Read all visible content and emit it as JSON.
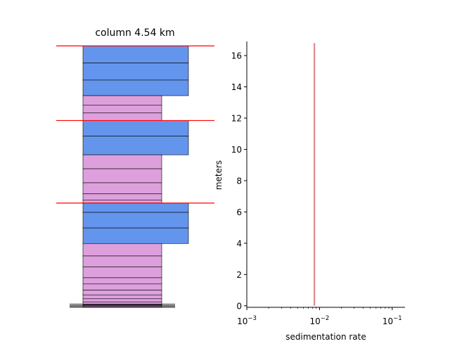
{
  "chart_data": [
    {
      "type": "stratigraphic-column",
      "title": "column 4.54 km",
      "ylim": [
        0,
        16.9
      ],
      "colors": {
        "wide": "#6495ED",
        "narrow": "#DDA0DD",
        "boundary": "#FF0000"
      },
      "boundaries": [
        16.8,
        12.0,
        6.7
      ],
      "beds": [
        {
          "bottom": 15.7,
          "top": 16.8,
          "kind": "wide"
        },
        {
          "bottom": 14.6,
          "top": 15.7,
          "kind": "wide"
        },
        {
          "bottom": 13.6,
          "top": 14.6,
          "kind": "wide"
        },
        {
          "bottom": 13.0,
          "top": 13.6,
          "kind": "narrow"
        },
        {
          "bottom": 12.5,
          "top": 13.0,
          "kind": "narrow"
        },
        {
          "bottom": 12.0,
          "top": 12.5,
          "kind": "narrow"
        },
        {
          "bottom": 11.0,
          "top": 12.0,
          "kind": "wide"
        },
        {
          "bottom": 9.8,
          "top": 11.0,
          "kind": "wide"
        },
        {
          "bottom": 8.9,
          "top": 9.8,
          "kind": "narrow"
        },
        {
          "bottom": 8.0,
          "top": 8.9,
          "kind": "narrow"
        },
        {
          "bottom": 7.3,
          "top": 8.0,
          "kind": "narrow"
        },
        {
          "bottom": 6.9,
          "top": 7.3,
          "kind": "narrow"
        },
        {
          "bottom": 6.7,
          "top": 6.9,
          "kind": "narrow"
        },
        {
          "bottom": 6.1,
          "top": 6.7,
          "kind": "wide"
        },
        {
          "bottom": 5.1,
          "top": 6.1,
          "kind": "wide"
        },
        {
          "bottom": 4.1,
          "top": 5.1,
          "kind": "wide"
        },
        {
          "bottom": 3.3,
          "top": 4.1,
          "kind": "narrow"
        },
        {
          "bottom": 2.6,
          "top": 3.3,
          "kind": "narrow"
        },
        {
          "bottom": 1.9,
          "top": 2.6,
          "kind": "narrow"
        },
        {
          "bottom": 1.5,
          "top": 1.9,
          "kind": "narrow"
        },
        {
          "bottom": 1.1,
          "top": 1.5,
          "kind": "narrow"
        },
        {
          "bottom": 0.8,
          "top": 1.1,
          "kind": "narrow"
        },
        {
          "bottom": 0.55,
          "top": 0.8,
          "kind": "narrow"
        },
        {
          "bottom": 0.35,
          "top": 0.55,
          "kind": "narrow"
        },
        {
          "bottom": 0.15,
          "top": 0.35,
          "kind": "narrow"
        },
        {
          "bottom": 0.0,
          "top": 0.15,
          "kind": "narrow"
        }
      ],
      "base_lines": [
        0.2,
        0.12,
        0.05,
        0.0
      ]
    },
    {
      "type": "line",
      "xlabel": "sedimentation rate",
      "ylabel": "meters",
      "xscale": "log",
      "xlim": [
        0.001,
        0.15
      ],
      "ylim": [
        -0.1,
        16.9
      ],
      "yticks": [
        0,
        2,
        4,
        6,
        8,
        10,
        12,
        14,
        16
      ],
      "xticks": [
        {
          "value": 0.001,
          "base": "10",
          "exp": "−3"
        },
        {
          "value": 0.01,
          "base": "10",
          "exp": "−2"
        },
        {
          "value": 0.1,
          "base": "10",
          "exp": "−1"
        }
      ],
      "series": [
        {
          "color": "#E08A8F",
          "x": [
            0.0085,
            0.0085
          ],
          "y": [
            0,
            16.8
          ]
        }
      ]
    }
  ]
}
